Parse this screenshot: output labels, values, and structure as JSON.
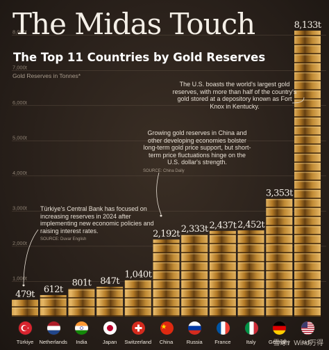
{
  "title": "The Midas Touch",
  "subtitle": "The Top 11 Countries by Gold Reserves",
  "watermark": "雪球：Wind万得",
  "annotations": {
    "us": "The U.S. boasts the world's largest gold reserves, with more than half of the country's gold stored at a depository known as Fort Knox in Kentucky.",
    "china": "Growing gold reserves in China and other developing economies bolster long-term gold price support, but short-term price fluctuations hinge on the U.S. dollar's strength.",
    "china_source": "SOURCE: China Daily",
    "turkiye": "Türkiye's Central Bank has focused on increasing reserves in 2024 after implementing new economic policies and raising interest rates.",
    "turkiye_source": "SOURCE: Duvar English"
  },
  "colors": {
    "gold_light": "#e0b060",
    "gold_mid": "#b8812c",
    "gold_dark": "#6e4614",
    "background": "#2a211b"
  },
  "chart_data": {
    "type": "bar",
    "title": "The Midas Touch",
    "subtitle": "The Top 11 Countries by Gold Reserves",
    "ylabel": "Gold Reserves in Tonnes*",
    "ylim": [
      0,
      8133
    ],
    "yticks": [
      "1,000t",
      "2,000t",
      "3,000t",
      "4,000t",
      "5,000t",
      "6,000t",
      "7,000t",
      "8,000t"
    ],
    "tick_values": [
      1000,
      2000,
      3000,
      4000,
      5000,
      6000,
      7000,
      8000
    ],
    "grid": true,
    "categories": [
      "Türkiye",
      "Netherlands",
      "India",
      "Japan",
      "Switzerland",
      "China",
      "Russia",
      "France",
      "Italy",
      "Germany",
      "U.S."
    ],
    "values": [
      479,
      612,
      801,
      847,
      1040,
      2192,
      2333,
      2437,
      2452,
      3353,
      8133
    ],
    "value_labels": [
      "479t",
      "612t",
      "801t",
      "847t",
      "1,040t",
      "2,192t",
      "2,333t",
      "2,437t",
      "2,452t",
      "3,353t",
      "8,133t"
    ],
    "flags": [
      "flag-turkiye-icon",
      "flag-netherlands-icon",
      "flag-india-icon",
      "flag-japan-icon",
      "flag-switzerland-icon",
      "flag-china-icon",
      "flag-russia-icon",
      "flag-france-icon",
      "flag-italy-icon",
      "flag-germany-icon",
      "flag-us-icon"
    ]
  }
}
